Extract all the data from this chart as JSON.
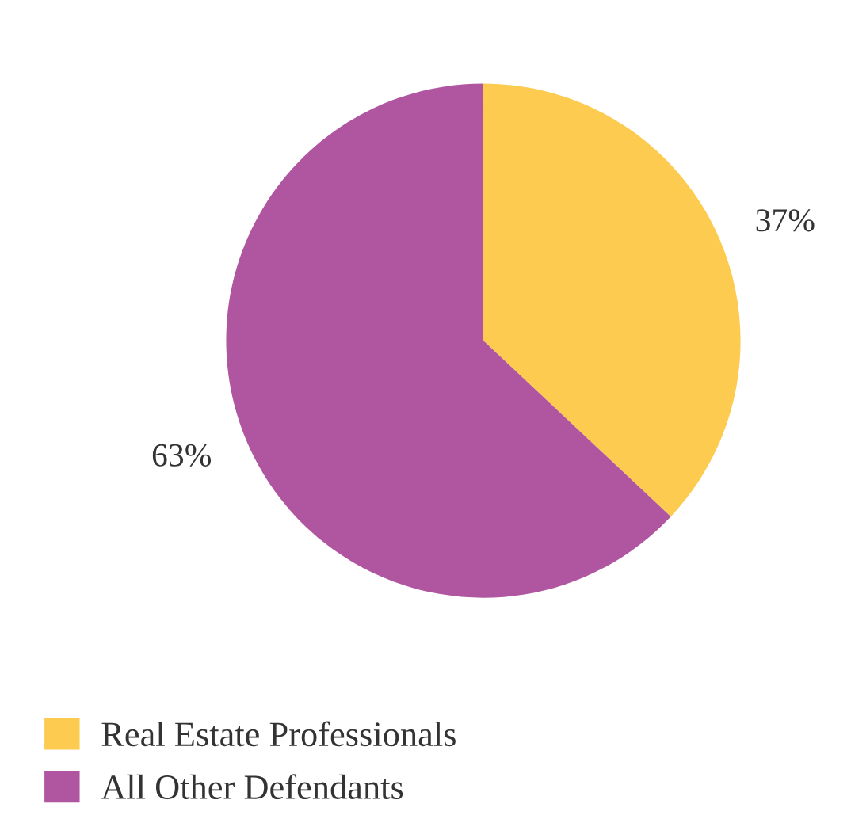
{
  "chart_data": {
    "type": "pie",
    "categories": [
      "Real Estate Professionals",
      "All Other Defendants"
    ],
    "values": [
      37,
      63
    ],
    "colors": [
      "#fdcb50",
      "#b055a0"
    ],
    "value_labels": [
      "37%",
      "63%"
    ],
    "legend": "bottom left"
  }
}
